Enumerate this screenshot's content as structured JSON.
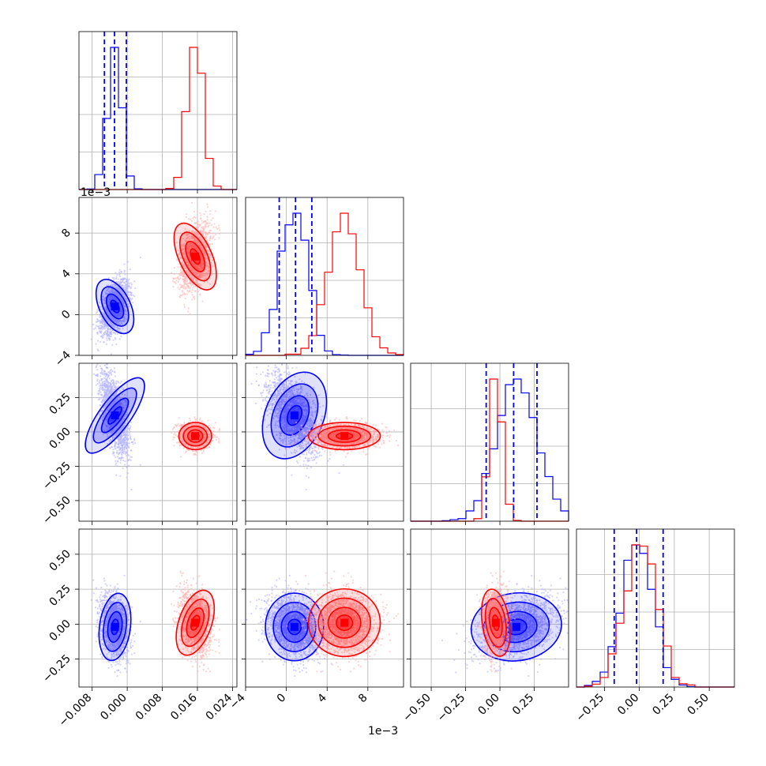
{
  "chart_data": {
    "type": "corner",
    "parameters": [
      {
        "range": [
          -0.011,
          0.025
        ],
        "ticks": [
          -0.008,
          0.0,
          0.008,
          0.016,
          0.024
        ],
        "tick_labels": [
          "−0.008",
          "0.000",
          "0.008",
          "0.016",
          "0.024"
        ]
      },
      {
        "range": [
          -0.004,
          0.0115
        ],
        "ticks": [
          -0.004,
          0.0,
          0.004,
          0.008
        ],
        "tick_labels": [
          "−4",
          "0",
          "4",
          "8"
        ],
        "offset_label": "1e−3"
      },
      {
        "range": [
          -0.65,
          0.5
        ],
        "ticks": [
          -0.5,
          -0.25,
          0.0,
          0.25
        ],
        "tick_labels": [
          "−0.50",
          "−0.25",
          "0.00",
          "0.25"
        ]
      },
      {
        "range": [
          -0.45,
          0.68
        ],
        "ticks": [
          -0.25,
          0.0,
          0.25,
          0.5
        ],
        "tick_labels": [
          "−0.25",
          "0.00",
          "0.25",
          "0.50"
        ]
      }
    ],
    "series": [
      {
        "color": "#0000ff",
        "means": [
          -0.0028,
          0.0008,
          0.12,
          -0.02
        ],
        "sds": [
          0.0016,
          0.0013,
          0.15,
          0.11
        ],
        "quantiles": [
          [
            -0.0052,
            -0.0029,
            -0.0002
          ],
          [
            -0.0007,
            0.0009,
            0.0025
          ],
          [
            -0.1,
            0.1,
            0.27
          ],
          [
            -0.18,
            -0.02,
            0.17
          ]
        ]
      },
      {
        "color": "#ff0000",
        "means": [
          0.0155,
          0.0057,
          -0.03,
          0.01
        ],
        "sds": [
          0.0017,
          0.0016,
          0.045,
          0.11
        ]
      }
    ],
    "hist_max": [
      1.0,
      1.0,
      1.0,
      1.0
    ],
    "grid": true
  }
}
